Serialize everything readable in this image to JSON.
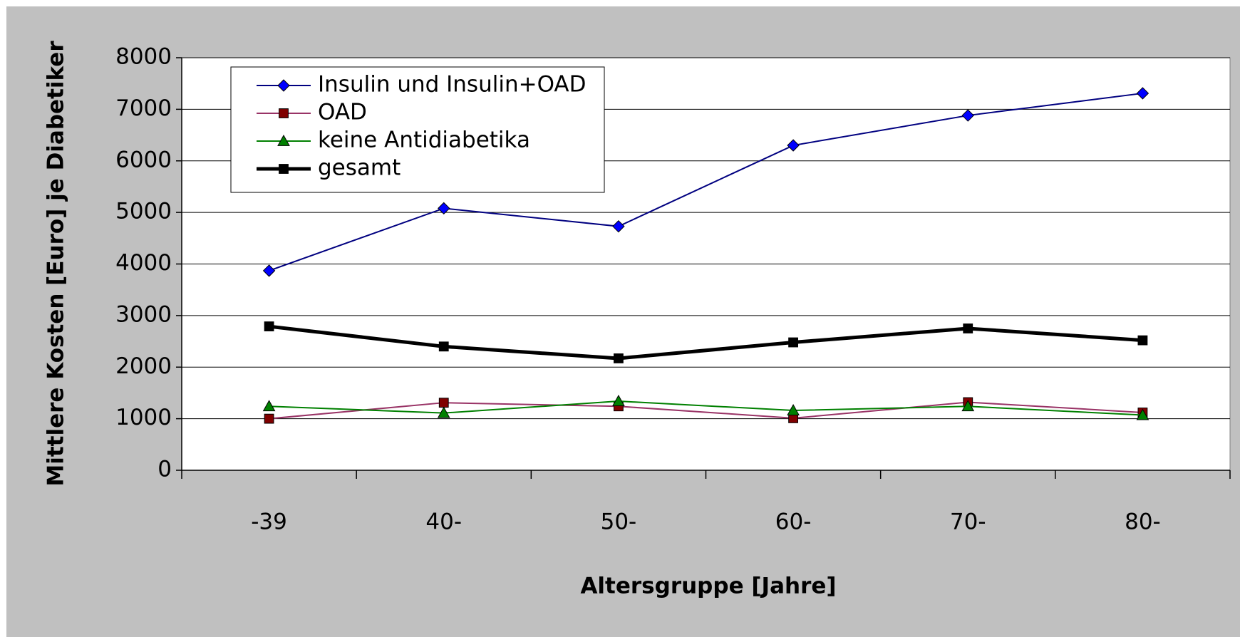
{
  "chart_data": {
    "type": "line",
    "xlabel": "Altersgruppe [Jahre]",
    "ylabel": "Mittlere Kosten [Euro] je Diabetiker",
    "categories": [
      "-39",
      "40-",
      "50-",
      "60-",
      "70-",
      "80-"
    ],
    "series": [
      {
        "name": "Insulin und Insulin+OAD",
        "color": "#000080",
        "marker_color": "#0000ff",
        "marker": "diamond",
        "line_width": 2,
        "values": [
          3870,
          5080,
          4730,
          6300,
          6880,
          7310
        ]
      },
      {
        "name": "OAD",
        "color": "#993366",
        "marker_color": "#800000",
        "marker": "square",
        "line_width": 2,
        "values": [
          1000,
          1310,
          1240,
          1010,
          1320,
          1120
        ]
      },
      {
        "name": "keine Antidiabetika",
        "color": "#008000",
        "marker_color": "#008000",
        "marker": "triangle",
        "line_width": 2,
        "values": [
          1240,
          1110,
          1340,
          1160,
          1240,
          1070
        ]
      },
      {
        "name": "gesamt",
        "color": "#000000",
        "marker_color": "#000000",
        "marker": "square",
        "line_width": 5,
        "values": [
          2790,
          2400,
          2170,
          2480,
          2750,
          2520
        ]
      }
    ],
    "ylim": [
      0,
      8000
    ],
    "yticks": [
      0,
      1000,
      2000,
      3000,
      4000,
      5000,
      6000,
      7000,
      8000
    ],
    "grid": true,
    "legend": "upper left"
  }
}
